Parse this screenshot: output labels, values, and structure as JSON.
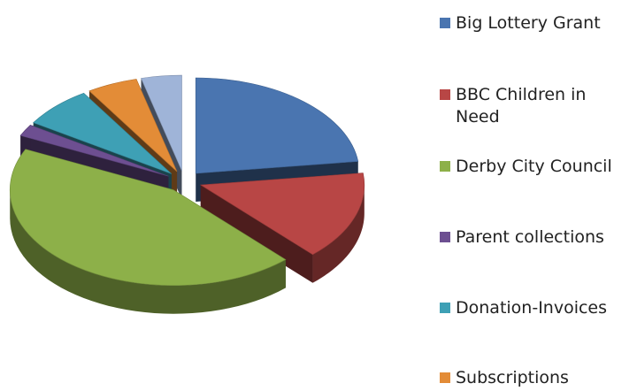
{
  "chart_data": {
    "type": "pie",
    "title": "",
    "exploded": true,
    "three_d": true,
    "legend_position": "right",
    "slices": [
      {
        "label": "Big Lottery Grant",
        "value": 23,
        "color": "#4a75b0"
      },
      {
        "label": "BBC Children in Need",
        "value": 15,
        "color": "#b84645"
      },
      {
        "label": "Derby City Council",
        "value": 44,
        "color": "#8db049"
      },
      {
        "label": "Parent collections",
        "value": 2,
        "color": "#6d4f91"
      },
      {
        "label": "Donation-Invoices",
        "value": 7,
        "color": "#3ea0b5"
      },
      {
        "label": "Subscriptions",
        "value": 5,
        "color": "#e38c37"
      },
      {
        "label": "",
        "value": 4,
        "color": "#9fb4d8"
      }
    ]
  }
}
